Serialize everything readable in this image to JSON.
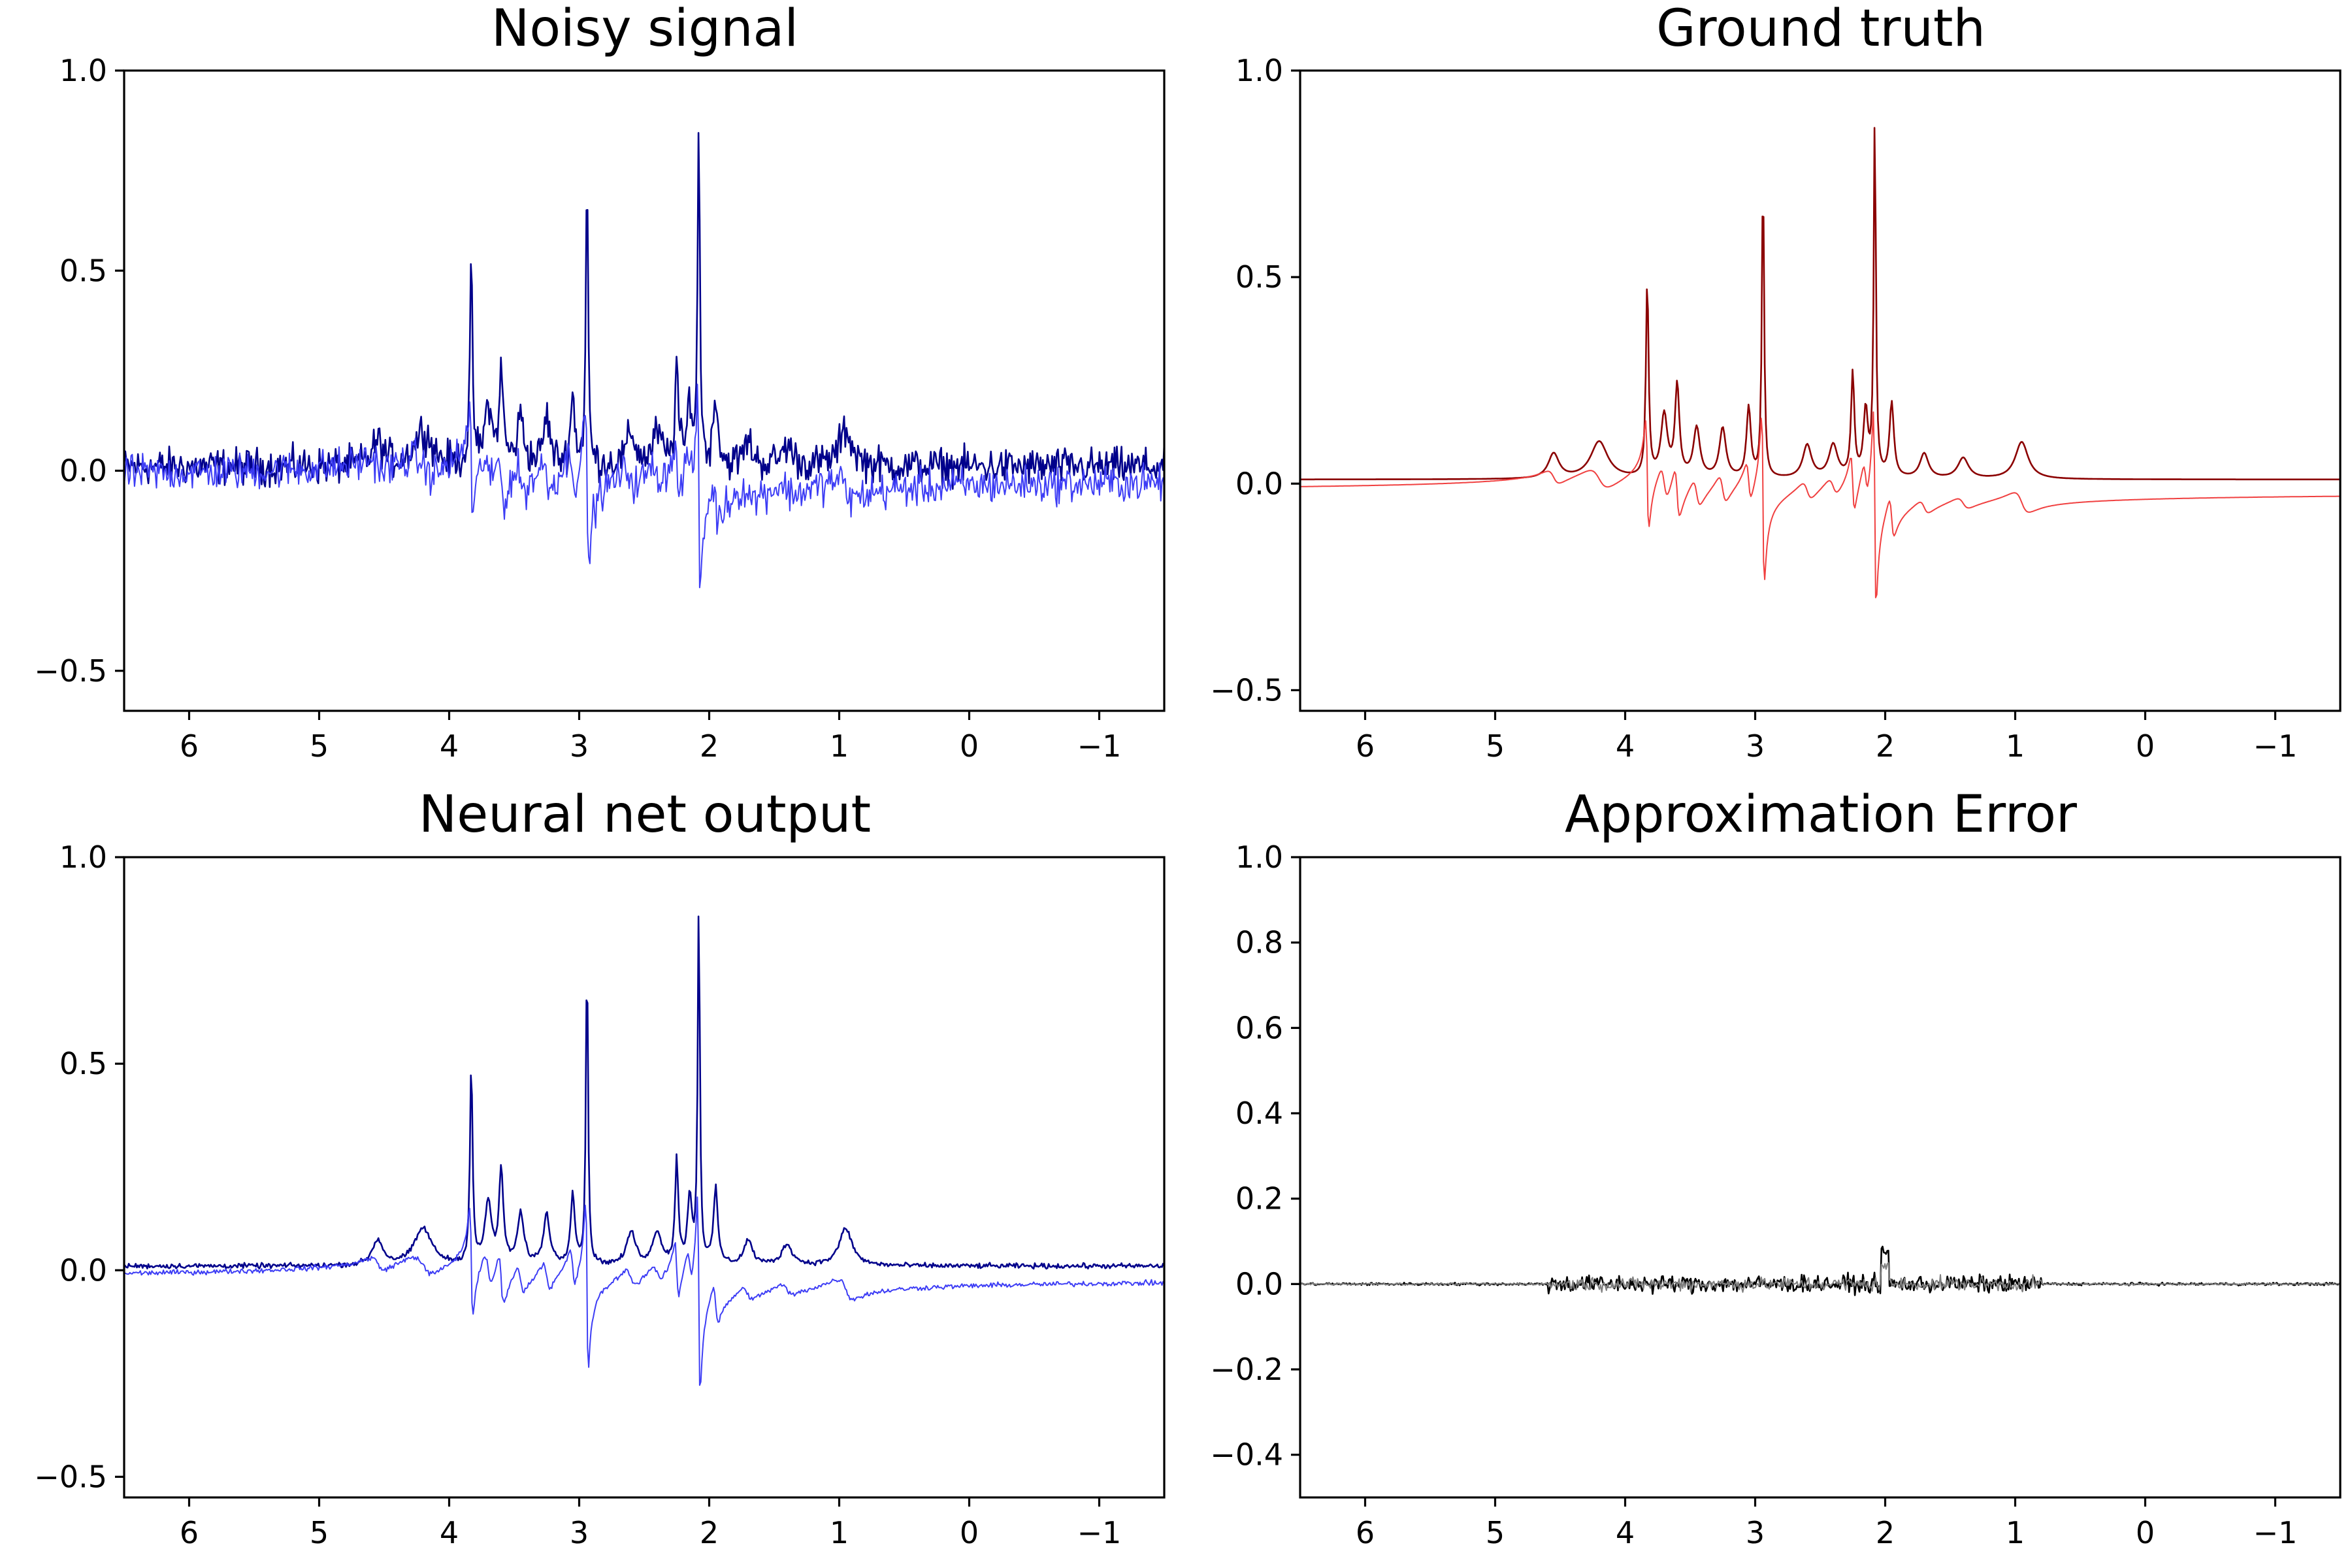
{
  "chart_data": [
    {
      "type": "line",
      "title": "Noisy signal",
      "xlim": [
        6.5,
        -1.5
      ],
      "ylim": [
        -0.6,
        1.0
      ],
      "xticks": [
        6,
        5,
        4,
        3,
        2,
        1,
        0,
        -1
      ],
      "xtick_labels": [
        "6",
        "5",
        "4",
        "3",
        "2",
        "1",
        "0",
        "−1"
      ],
      "yticks": [
        1.0,
        0.5,
        0.0,
        -0.5
      ],
      "ytick_labels": [
        "1.0",
        "0.5",
        "0.0",
        "−0.5"
      ],
      "series": [
        {
          "color": "#00008b",
          "values_from": "real_peaks",
          "noise": 0.045
        },
        {
          "color": "#3d3df5",
          "values_from": "imag_peaks",
          "noise": 0.045
        }
      ]
    },
    {
      "type": "line",
      "title": "Ground truth",
      "xlim": [
        6.5,
        -1.5
      ],
      "ylim": [
        -0.55,
        1.0
      ],
      "xticks": [
        6,
        5,
        4,
        3,
        2,
        1,
        0,
        -1
      ],
      "xtick_labels": [
        "6",
        "5",
        "4",
        "3",
        "2",
        "1",
        "0",
        "−1"
      ],
      "yticks": [
        1.0,
        0.5,
        0.0,
        -0.5
      ],
      "ytick_labels": [
        "1.0",
        "0.5",
        "0.0",
        "−0.5"
      ],
      "series": [
        {
          "color": "#8b0000",
          "values_from": "real_peaks",
          "noise": 0
        },
        {
          "color": "#f04040",
          "values_from": "imag_peaks",
          "noise": 0
        }
      ]
    },
    {
      "type": "line",
      "title": "Neural net output",
      "xlim": [
        6.5,
        -1.5
      ],
      "ylim": [
        -0.55,
        1.0
      ],
      "xticks": [
        6,
        5,
        4,
        3,
        2,
        1,
        0,
        -1
      ],
      "xtick_labels": [
        "6",
        "5",
        "4",
        "3",
        "2",
        "1",
        "0",
        "−1"
      ],
      "yticks": [
        1.0,
        0.5,
        0.0,
        -0.5
      ],
      "ytick_labels": [
        "1.0",
        "0.5",
        "0.0",
        "−0.5"
      ],
      "series": [
        {
          "color": "#00008b",
          "values_from": "real_peaks",
          "noise": 0.006
        },
        {
          "color": "#3d3df5",
          "values_from": "imag_peaks",
          "noise": 0.006
        }
      ]
    },
    {
      "type": "line",
      "title": "Approximation Error",
      "xlim": [
        6.5,
        -1.5
      ],
      "ylim": [
        -0.5,
        1.0
      ],
      "xticks": [
        6,
        5,
        4,
        3,
        2,
        1,
        0,
        -1
      ],
      "xtick_labels": [
        "6",
        "5",
        "4",
        "3",
        "2",
        "1",
        "0",
        "−1"
      ],
      "yticks": [
        1.0,
        0.8,
        0.6,
        0.4,
        0.2,
        0.0,
        -0.2,
        -0.4
      ],
      "ytick_labels": [
        "1.0",
        "0.8",
        "0.6",
        "0.4",
        "0.2",
        "0.0",
        "−0.2",
        "−0.4"
      ],
      "series": [
        {
          "color": "#000000",
          "values_from": "error",
          "noise": 0.02
        },
        {
          "color": "#808080",
          "values_from": "error",
          "noise": 0.015
        }
      ]
    }
  ],
  "signal_model": {
    "x_range": [
      6.5,
      -1.5
    ],
    "peaks": [
      {
        "x": 4.55,
        "amp": 0.06,
        "width": 0.05
      },
      {
        "x": 4.2,
        "amp": 0.09,
        "width": 0.08
      },
      {
        "x": 3.83,
        "amp": 0.48,
        "width": 0.012
      },
      {
        "x": 3.7,
        "amp": 0.15,
        "width": 0.03
      },
      {
        "x": 3.6,
        "amp": 0.22,
        "width": 0.02
      },
      {
        "x": 3.45,
        "amp": 0.12,
        "width": 0.03
      },
      {
        "x": 3.25,
        "amp": 0.12,
        "width": 0.03
      },
      {
        "x": 3.05,
        "amp": 0.17,
        "width": 0.02
      },
      {
        "x": 2.94,
        "amp": 0.75,
        "width": 0.01
      },
      {
        "x": 2.6,
        "amp": 0.08,
        "width": 0.04
      },
      {
        "x": 2.4,
        "amp": 0.08,
        "width": 0.04
      },
      {
        "x": 2.25,
        "amp": 0.25,
        "width": 0.015
      },
      {
        "x": 2.15,
        "amp": 0.16,
        "width": 0.02
      },
      {
        "x": 2.08,
        "amp": 0.87,
        "width": 0.01
      },
      {
        "x": 1.95,
        "amp": 0.18,
        "width": 0.02
      },
      {
        "x": 1.7,
        "amp": 0.06,
        "width": 0.04
      },
      {
        "x": 1.4,
        "amp": 0.05,
        "width": 0.05
      },
      {
        "x": 0.95,
        "amp": 0.09,
        "width": 0.06
      }
    ]
  }
}
